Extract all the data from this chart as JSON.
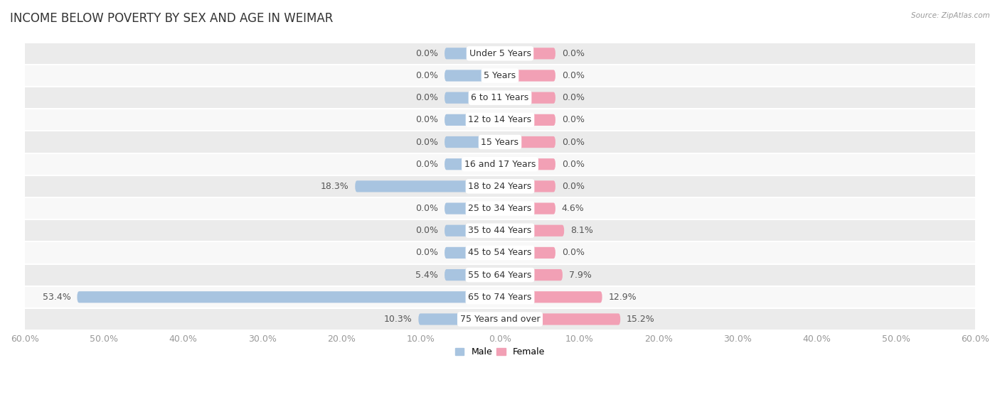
{
  "title": "INCOME BELOW POVERTY BY SEX AND AGE IN WEIMAR",
  "source": "Source: ZipAtlas.com",
  "categories": [
    "Under 5 Years",
    "5 Years",
    "6 to 11 Years",
    "12 to 14 Years",
    "15 Years",
    "16 and 17 Years",
    "18 to 24 Years",
    "25 to 34 Years",
    "35 to 44 Years",
    "45 to 54 Years",
    "55 to 64 Years",
    "65 to 74 Years",
    "75 Years and over"
  ],
  "male": [
    0.0,
    0.0,
    0.0,
    0.0,
    0.0,
    0.0,
    18.3,
    0.0,
    0.0,
    0.0,
    5.4,
    53.4,
    10.3
  ],
  "female": [
    0.0,
    0.0,
    0.0,
    0.0,
    0.0,
    0.0,
    0.0,
    4.6,
    8.1,
    0.0,
    7.9,
    12.9,
    15.2
  ],
  "male_color": "#a8c4e0",
  "female_color": "#f2a0b5",
  "background_row_light": "#ebebeb",
  "background_row_white": "#f8f8f8",
  "axis_max": 60.0,
  "default_bar_width": 7.0,
  "bar_height": 0.52,
  "legend_male": "Male",
  "legend_female": "Female",
  "title_fontsize": 12,
  "label_fontsize": 9,
  "tick_fontsize": 9,
  "value_fontsize": 9
}
